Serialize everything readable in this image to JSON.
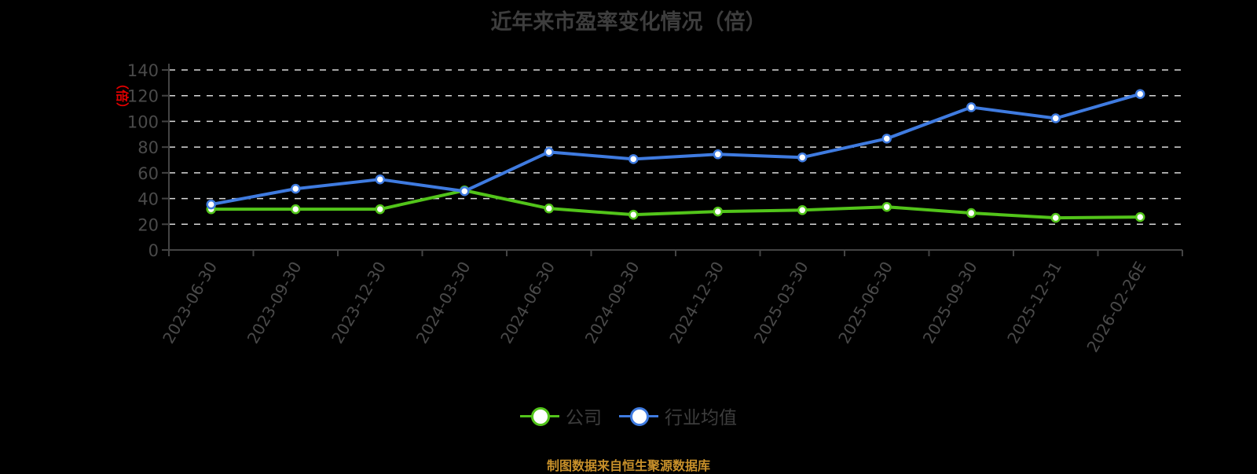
{
  "chart_data": {
    "type": "line",
    "title": "近年来市盈率变化情况（倍）",
    "xlabel": "",
    "ylabel": "（倍）",
    "ylim": [
      0,
      140
    ],
    "yticks": [
      0,
      20,
      40,
      60,
      80,
      100,
      120,
      140
    ],
    "grid": true,
    "legend_position": "bottom",
    "categories": [
      "2023-06-30",
      "2023-09-30",
      "2023-12-30",
      "2024-03-30",
      "2024-06-30",
      "2024-09-30",
      "2024-12-30",
      "2025-03-30",
      "2025-06-30",
      "2025-09-30",
      "2025-12-31",
      "2026-02-26E"
    ],
    "series": [
      {
        "name": "公司",
        "color": "#52c41a",
        "values": [
          31.7,
          31.7,
          31.7,
          46.3,
          32.3,
          27.4,
          29.9,
          31.0,
          33.5,
          28.7,
          25.0,
          25.6
        ]
      },
      {
        "name": "行业均值",
        "color": "#3f7be0",
        "values": [
          35.4,
          47.6,
          54.9,
          45.7,
          76.2,
          70.7,
          74.4,
          72.0,
          86.6,
          111.0,
          102.4,
          121.3
        ]
      }
    ]
  },
  "header": {
    "title": "近年来市盈率变化情况（倍）"
  },
  "legend": {
    "items": [
      {
        "label": "公司",
        "color": "#52c41a"
      },
      {
        "label": "行业均值",
        "color": "#3f7be0"
      }
    ]
  },
  "footer": {
    "source": "制图数据来自恒生聚源数据库"
  }
}
